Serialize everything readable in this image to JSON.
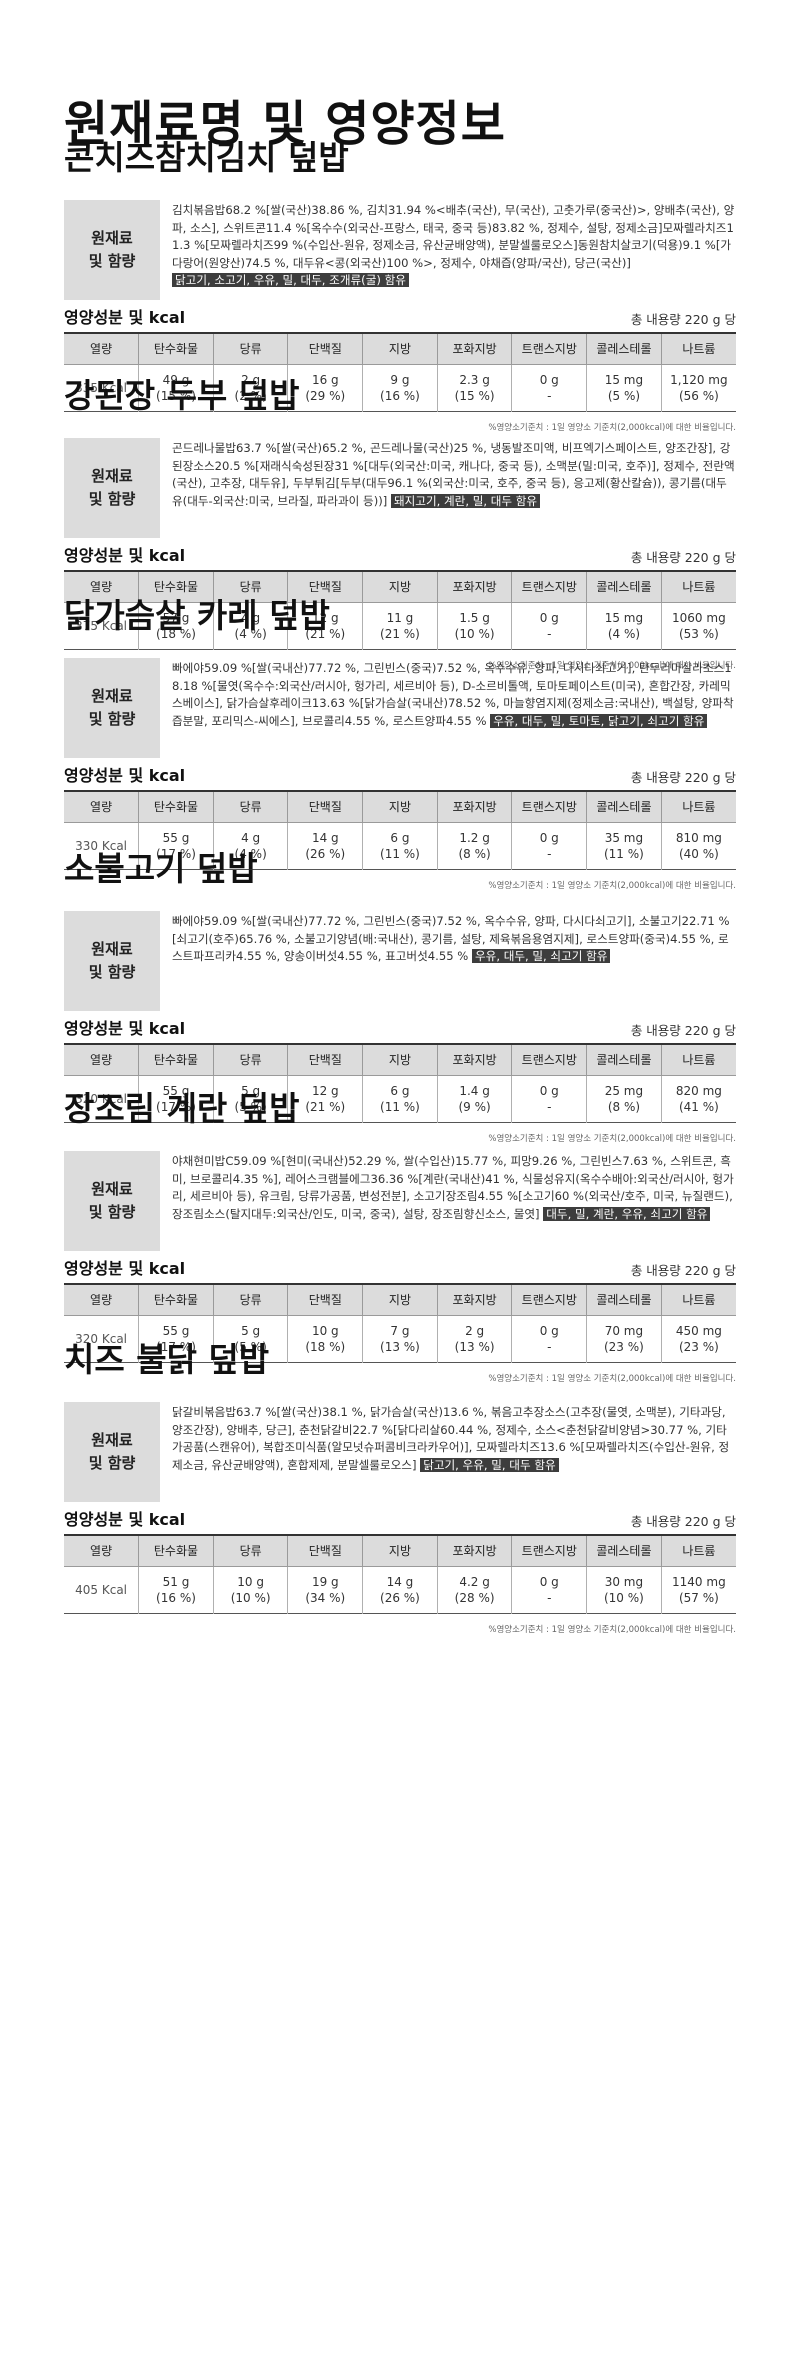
{
  "page_title": "원재료명 및 영양정보",
  "labels": {
    "ingredient_label_line1": "원재료",
    "ingredient_label_line2": "및 함량",
    "nutrition_title": "영양성분 및 kcal",
    "footnote": "%영양소기준치 : 1일 영양소 기준치(2,000kcal)에 대한 비율입니다."
  },
  "table_headers": [
    "열량",
    "탄수화물",
    "당류",
    "단백질",
    "지방",
    "포화지방",
    "트랜스지방",
    "콜레스테롤",
    "나트륨"
  ],
  "products": [
    {
      "name": "콘치즈참치김치 덮밥",
      "ingredients": "김치볶음밥68.2 %[쌀(국산)38.86 %, 김치31.94 %<배추(국산), 무(국산), 고춧가루(중국산)>, 양배추(국산), 양파, 소스], 스위트콘11.4 %[옥수수(외국산-프랑스, 태국, 중국 등)83.82 %, 정제수, 설탕, 정제소금]모짜렐라치즈11.3 %[모짜렐라치즈99 %(수입산-원유, 정제소금, 유산균배양액), 분말셀룰로오스]동원참치살코기(덕용)9.1 %[가다랑어(원양산)74.5 %, 대두유<콩(외국산)100 %>, 정제수, 야채즙(양파/국산), 당근(국산)]",
      "allergens": "닭고기, 소고기, 우유, 밀, 대두, 조개류(굴) 함유",
      "total": "총 내용량 220 g 당",
      "kcal": "335 Kcal",
      "cells": [
        {
          "amount": "49 g",
          "pct": "(15 %)"
        },
        {
          "amount": "2 g",
          "pct": "(2 %)"
        },
        {
          "amount": "16 g",
          "pct": "(29 %)"
        },
        {
          "amount": "9 g",
          "pct": "(16 %)"
        },
        {
          "amount": "2.3 g",
          "pct": "(15 %)"
        },
        {
          "amount": "0 g",
          "pct": "-"
        },
        {
          "amount": "15 mg",
          "pct": "(5 %)"
        },
        {
          "amount": "1,120 mg",
          "pct": "(56 %)"
        }
      ]
    },
    {
      "name": "강된장 두부 덮밥",
      "ingredients": "곤드레나물밥63.7 %[쌀(국산)65.2 %, 곤드레나물(국산)25 %, 냉동발조미액, 비프엑기스페이스트, 양조간장], 강된장소스20.5 %[재래식숙성된장31 %[대두(외국산:미국, 캐나다, 중국 등), 소맥분(밀:미국, 호주)], 정제수, 전란액(국산), 고추장, 대두유], 두부튀김[두부(대두96.1 %(외국산:미국, 호주, 중국 등), 응고제(황산칼슘)), 콩기름(대두유(대두-외국산:미국, 브라질, 파라과이 등))]",
      "allergens": "돼지고기, 계란, 밀, 대두 함유",
      "total": "총 내용량 220 g 당",
      "kcal": "375 Kcal",
      "cells": [
        {
          "amount": "57 g",
          "pct": "(18 %)"
        },
        {
          "amount": "4 g",
          "pct": "(4 %)"
        },
        {
          "amount": "12 g",
          "pct": "(21 %)"
        },
        {
          "amount": "11 g",
          "pct": "(21 %)"
        },
        {
          "amount": "1.5 g",
          "pct": "(10 %)"
        },
        {
          "amount": "0 g",
          "pct": "-"
        },
        {
          "amount": "15 mg",
          "pct": "(4 %)"
        },
        {
          "amount": "1060 mg",
          "pct": "(53 %)"
        }
      ]
    },
    {
      "name": "닭가슴살 카레 덮밥",
      "ingredients": "빠에야59.09 %[쌀(국내산)77.72 %, 그린빈스(중국)7.52 %, 옥수수유, 양파, 다시다쇠고기], 탄두리마살라소스18.18 %[물엿(옥수수:외국산/러시아, 헝가리, 세르비아 등), D-소르비톨액, 토마토페이스트(미국), 혼합간장, 카레믹스베이스], 닭가슴살후레이크13.63 %[닭가슴살(국내산)78.52 %, 마늘향염지제(정제소금:국내산), 백설탕, 양파착즙분말, 포리믹스-씨에스], 브로콜리4.55 %, 로스트양파4.55 %",
      "allergens": "우유, 대두, 밀, 토마토, 닭고기, 쇠고기 함유",
      "total": "총 내용량 220 g 당",
      "kcal": "330 Kcal",
      "cells": [
        {
          "amount": "55 g",
          "pct": "(17 %)"
        },
        {
          "amount": "4 g",
          "pct": "(4 %)"
        },
        {
          "amount": "14 g",
          "pct": "(26 %)"
        },
        {
          "amount": "6 g",
          "pct": "(11 %)"
        },
        {
          "amount": "1.2 g",
          "pct": "(8 %)"
        },
        {
          "amount": "0 g",
          "pct": "-"
        },
        {
          "amount": "35 mg",
          "pct": "(11 %)"
        },
        {
          "amount": "810 mg",
          "pct": "(40 %)"
        }
      ]
    },
    {
      "name": "소불고기 덮밥",
      "ingredients": "빠에야59.09 %[쌀(국내산)77.72 %, 그린빈스(중국)7.52 %, 옥수수유, 양파, 다시다쇠고기], 소불고기22.71 %[쇠고기(호주)65.76 %, 소불고기양념(배:국내산), 콩기름, 설탕, 제육볶음용염지제], 로스트양파(중국)4.55 %, 로스트파프리카4.55 %, 양송이버섯4.55 %, 표고버섯4.55 %",
      "allergens": "우유, 대두, 밀, 쇠고기 함유",
      "total": "총 내용량 220 g 당",
      "kcal": "320 Kcal",
      "cells": [
        {
          "amount": "55 g",
          "pct": "(17 %)"
        },
        {
          "amount": "5 g",
          "pct": "(5 %)"
        },
        {
          "amount": "12 g",
          "pct": "(21 %)"
        },
        {
          "amount": "6 g",
          "pct": "(11 %)"
        },
        {
          "amount": "1.4 g",
          "pct": "(9 %)"
        },
        {
          "amount": "0 g",
          "pct": "-"
        },
        {
          "amount": "25 mg",
          "pct": "(8 %)"
        },
        {
          "amount": "820 mg",
          "pct": "(41 %)"
        }
      ]
    },
    {
      "name": "장조림 계란 덮밥",
      "ingredients": "야채현미밥C59.09 %[현미(국내산)52.29 %, 쌀(수입산)15.77 %, 피망9.26 %, 그린빈스7.63 %, 스위트콘, 흑미, 브로콜리4.35 %], 레어스크램블에그36.36 %[계란(국내산)41 %, 식물성유지(옥수수배아:외국산/러시아, 헝가리, 세르비아 등), 유크림, 당류가공품, 변성전분], 소고기장조림4.55 %[소고기60 %(외국산/호주, 미국, 뉴질랜드), 장조림소스(탈지대두:외국산/인도, 미국, 중국), 설탕, 장조림향신소스, 물엿]",
      "allergens": "대두, 밀, 계란, 우유, 쇠고기 함유",
      "total": "총 내용량 220 g 당",
      "kcal": "320 Kcal",
      "cells": [
        {
          "amount": "55 g",
          "pct": "(17 %)"
        },
        {
          "amount": "5 g",
          "pct": "(5 %)"
        },
        {
          "amount": "10 g",
          "pct": "(18 %)"
        },
        {
          "amount": "7 g",
          "pct": "(13 %)"
        },
        {
          "amount": "2 g",
          "pct": "(13 %)"
        },
        {
          "amount": "0 g",
          "pct": "-"
        },
        {
          "amount": "70 mg",
          "pct": "(23 %)"
        },
        {
          "amount": "450 mg",
          "pct": "(23 %)"
        }
      ]
    },
    {
      "name": "치즈 불닭 덮밥",
      "ingredients": "닭갈비볶음밥63.7 %[쌀(국산)38.1 %, 닭가슴살(국산)13.6 %, 볶음고추장소스(고추장(물엿, 소맥분), 기타과당, 양조간장), 양배추, 당근], 춘천닭갈비22.7 %[닭다리살60.44 %, 정제수, 소스<춘천닭갈비양념>30.77 %, 기타가공품(스캔유어), 복합조미식품(알모넛슈퍼콤비크라카우어)], 모짜렐라치즈13.6 %[모짜렐라치즈(수입산-원유, 정제소금, 유산균배양액), 혼합제제, 분말셀룰로오스]",
      "allergens": "닭고기, 우유, 밀, 대두 함유",
      "total": "총 내용량 220 g 당",
      "kcal": "405 Kcal",
      "cells": [
        {
          "amount": "51 g",
          "pct": "(16 %)"
        },
        {
          "amount": "10 g",
          "pct": "(10 %)"
        },
        {
          "amount": "19 g",
          "pct": "(34 %)"
        },
        {
          "amount": "14 g",
          "pct": "(26 %)"
        },
        {
          "amount": "4.2 g",
          "pct": "(28 %)"
        },
        {
          "amount": "0 g",
          "pct": "-"
        },
        {
          "amount": "30 mg",
          "pct": "(10 %)"
        },
        {
          "amount": "1140 mg",
          "pct": "(57 %)"
        }
      ]
    }
  ]
}
